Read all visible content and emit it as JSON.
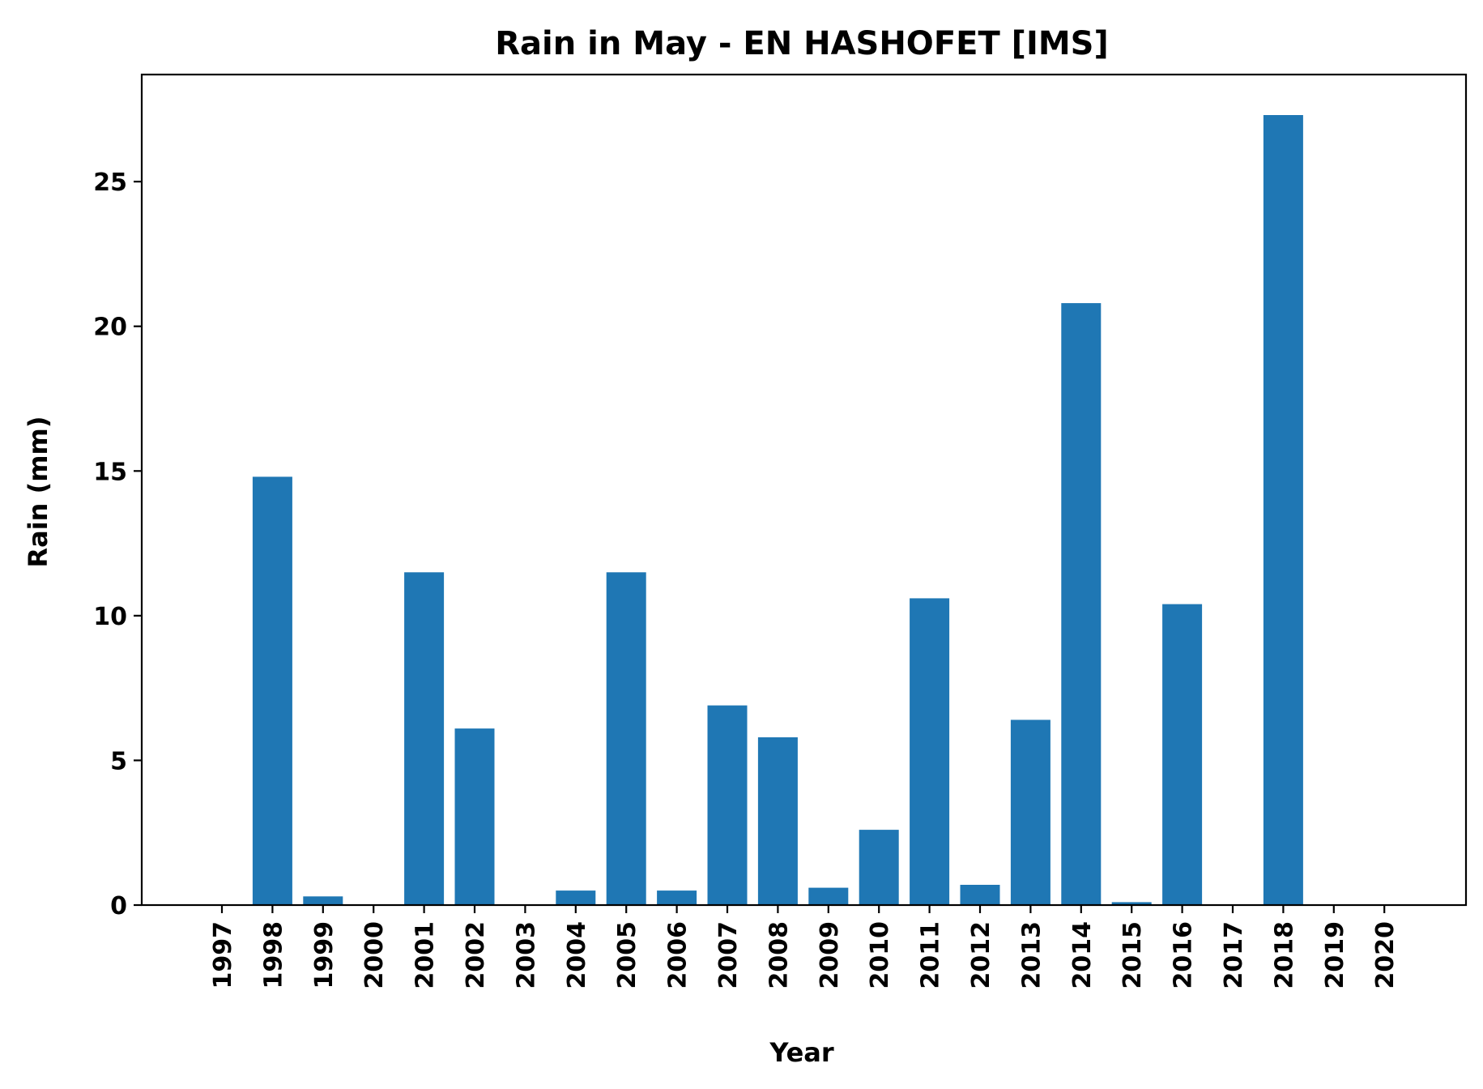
{
  "chart_data": {
    "type": "bar",
    "title": "Rain in May - EN HASHOFET [IMS]",
    "xlabel": "Year",
    "ylabel": "Rain (mm)",
    "ylim": [
      0,
      28.7
    ],
    "yticks": [
      0,
      5,
      10,
      15,
      20,
      25
    ],
    "color": "#1f77b4",
    "categories": [
      "1997",
      "1998",
      "1999",
      "2000",
      "2001",
      "2002",
      "2003",
      "2004",
      "2005",
      "2006",
      "2007",
      "2008",
      "2009",
      "2010",
      "2011",
      "2012",
      "2013",
      "2014",
      "2015",
      "2016",
      "2017",
      "2018",
      "2019",
      "2020"
    ],
    "values": [
      0,
      14.8,
      0.3,
      0,
      11.5,
      6.1,
      0,
      0.5,
      11.5,
      0.5,
      6.9,
      5.8,
      0.6,
      2.6,
      10.6,
      0.7,
      6.4,
      20.8,
      0.1,
      10.4,
      0,
      27.3,
      0,
      0
    ],
    "grid": false,
    "legend": "none"
  }
}
